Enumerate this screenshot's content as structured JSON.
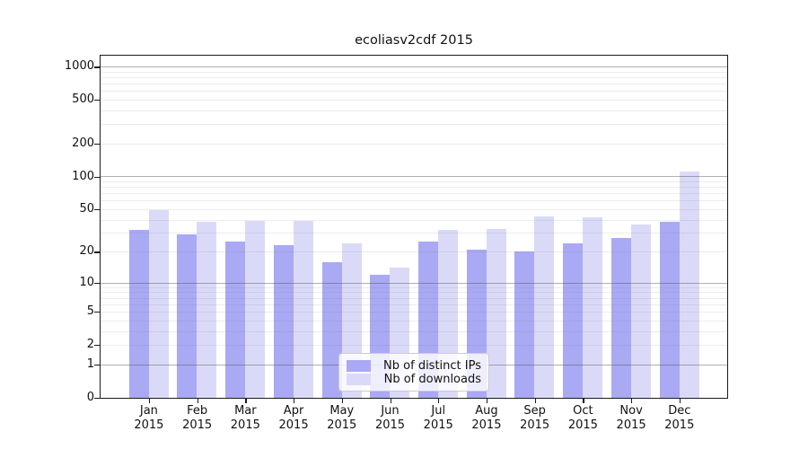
{
  "title": "ecoliasv2cdf 2015",
  "legend": {
    "items": [
      {
        "label": "Nb of distinct IPs"
      },
      {
        "label": "Nb of downloads"
      }
    ]
  },
  "colors": {
    "distinct_ips": "#a9a9f4",
    "downloads": "#dadaf8",
    "spine": "#1a1a1a",
    "major_grid": "#888888",
    "minor_grid": "#e2e2e2",
    "legend_border": "#cccccc"
  },
  "axis": {
    "y_ticks": [
      {
        "value": 1000,
        "label": "1000"
      },
      {
        "value": 500,
        "label": "500"
      },
      {
        "value": 200,
        "label": "200"
      },
      {
        "value": 100,
        "label": "100"
      },
      {
        "value": 50,
        "label": "50"
      },
      {
        "value": 20,
        "label": "20"
      },
      {
        "value": 10,
        "label": "10"
      },
      {
        "value": 5,
        "label": "5"
      },
      {
        "value": 2,
        "label": "2"
      },
      {
        "value": 1,
        "label": "1"
      },
      {
        "value": 0,
        "label": "0"
      }
    ],
    "x_year": "2015"
  },
  "chart_data": {
    "type": "bar",
    "title": "ecoliasv2cdf 2015",
    "xlabel": "",
    "ylabel": "",
    "categories": [
      "Jan",
      "Feb",
      "Mar",
      "Apr",
      "May",
      "Jun",
      "Jul",
      "Aug",
      "Sep",
      "Oct",
      "Nov",
      "Dec"
    ],
    "x_year": "2015",
    "series": [
      {
        "name": "Nb of distinct IPs",
        "values": [
          32,
          29,
          25,
          23,
          16,
          12,
          25,
          21,
          20,
          24,
          27,
          38
        ]
      },
      {
        "name": "Nb of downloads",
        "values": [
          49,
          38,
          39,
          39,
          24,
          14,
          32,
          33,
          43,
          42,
          36,
          110
        ]
      }
    ],
    "y_scale": "log10(1+v)",
    "ylim": [
      0,
      1280
    ],
    "yticks": [
      0,
      1,
      2,
      5,
      10,
      20,
      50,
      100,
      200,
      500,
      1000
    ],
    "grid": true,
    "grid_above_bars": true,
    "legend_position": "lower center"
  }
}
